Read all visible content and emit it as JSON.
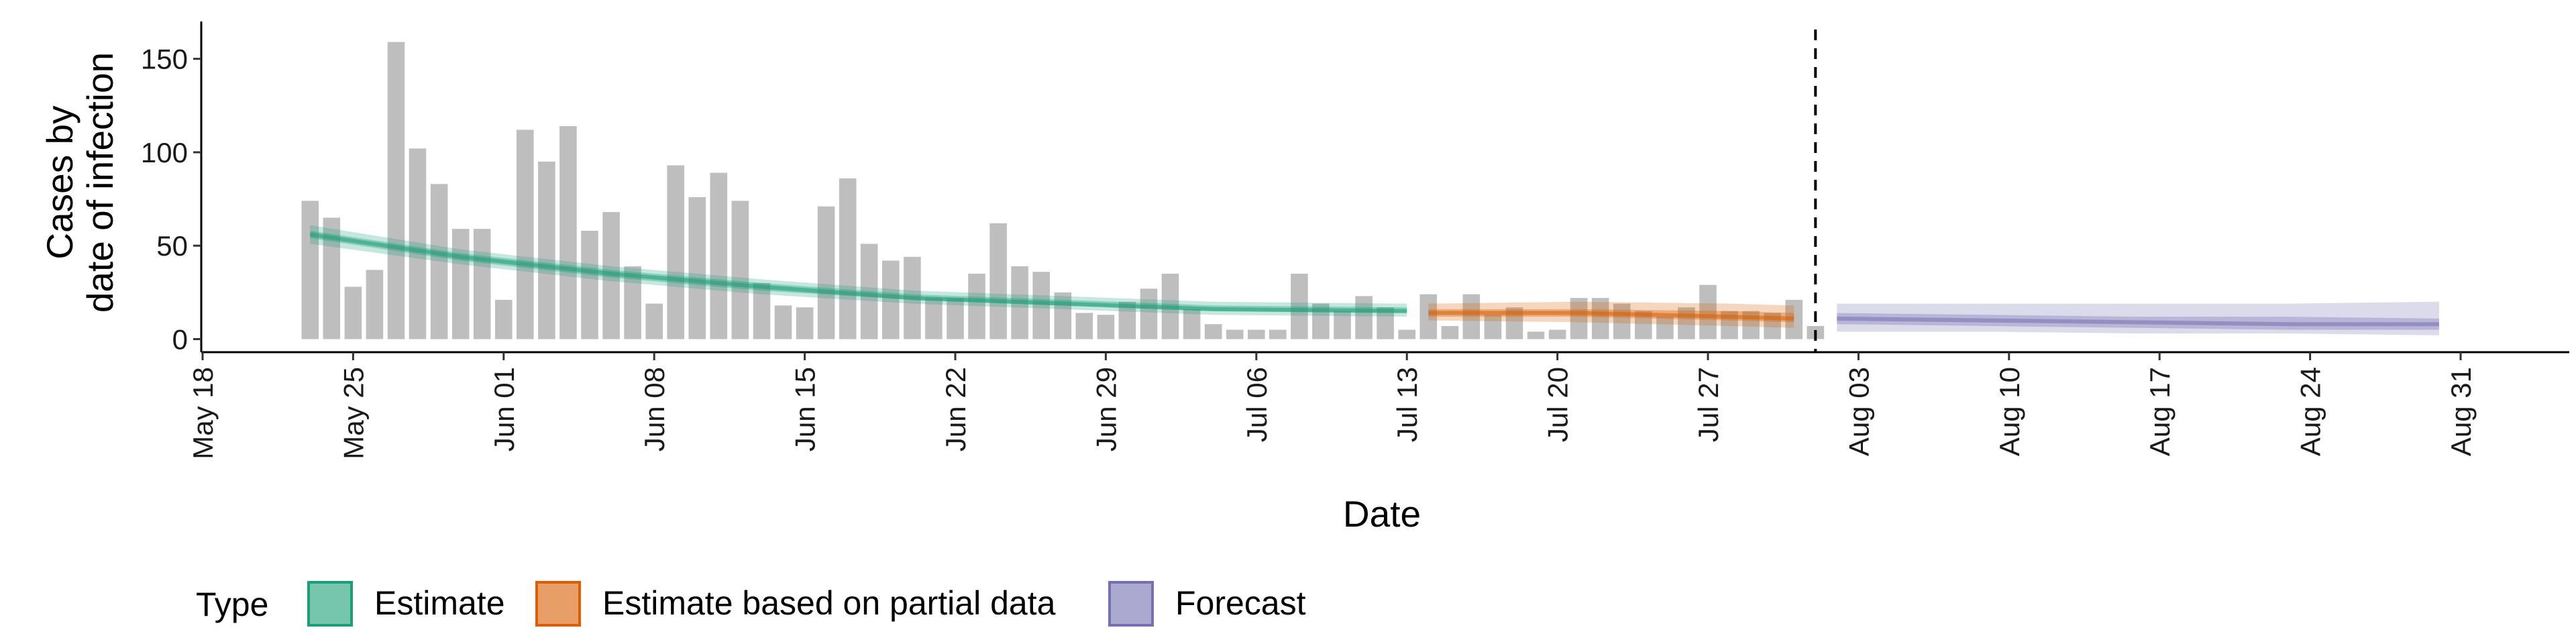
{
  "chart_data": {
    "type": "bar",
    "title": "",
    "xlabel": "Date",
    "ylabel_lines": [
      "Cases by",
      "date of infection"
    ],
    "x_range": [
      "2020-05-18",
      "2020-08-31"
    ],
    "ylim": [
      -7,
      170
    ],
    "y_ticks": [
      0,
      50,
      100,
      150
    ],
    "x_ticks": [
      {
        "date": "2020-05-18",
        "label": "May 18"
      },
      {
        "date": "2020-05-25",
        "label": "May 25"
      },
      {
        "date": "2020-06-01",
        "label": "Jun 01"
      },
      {
        "date": "2020-06-08",
        "label": "Jun 08"
      },
      {
        "date": "2020-06-15",
        "label": "Jun 15"
      },
      {
        "date": "2020-06-22",
        "label": "Jun 22"
      },
      {
        "date": "2020-06-29",
        "label": "Jun 29"
      },
      {
        "date": "2020-07-06",
        "label": "Jul 06"
      },
      {
        "date": "2020-07-13",
        "label": "Jul 13"
      },
      {
        "date": "2020-07-20",
        "label": "Jul 20"
      },
      {
        "date": "2020-07-27",
        "label": "Jul 27"
      },
      {
        "date": "2020-08-03",
        "label": "Aug 03"
      },
      {
        "date": "2020-08-10",
        "label": "Aug 10"
      },
      {
        "date": "2020-08-17",
        "label": "Aug 17"
      },
      {
        "date": "2020-08-24",
        "label": "Aug 24"
      },
      {
        "date": "2020-08-31",
        "label": "Aug 31"
      }
    ],
    "grid": false,
    "forecast_start": "2020-08-01",
    "bars": {
      "start_date": "2020-05-23",
      "color": "#bebebe",
      "values": [
        74,
        65,
        28,
        37,
        159,
        102,
        83,
        59,
        59,
        21,
        112,
        95,
        114,
        58,
        68,
        39,
        19,
        93,
        76,
        89,
        74,
        30,
        18,
        17,
        71,
        86,
        51,
        42,
        44,
        22,
        22,
        35,
        62,
        39,
        36,
        25,
        14,
        13,
        20,
        27,
        35,
        16,
        8,
        5,
        5,
        5,
        35,
        19,
        15,
        23,
        17,
        5,
        24,
        7,
        24,
        13,
        17,
        4,
        5,
        22,
        22,
        19,
        15,
        12,
        17,
        29,
        15,
        15,
        14,
        21,
        7
      ]
    },
    "ribbons": [
      {
        "type": "Estimate",
        "color": "#1b9e77",
        "dates": [
          "2020-05-23",
          "2020-05-30",
          "2020-06-06",
          "2020-06-13",
          "2020-06-20",
          "2020-06-27",
          "2020-07-04",
          "2020-07-13"
        ],
        "median": [
          56,
          44,
          35,
          28,
          22,
          19,
          16,
          15
        ],
        "lower_90": [
          51,
          40,
          31,
          24,
          19,
          16,
          13,
          12
        ],
        "upper_90": [
          61,
          48,
          39,
          32,
          26,
          23,
          20,
          19
        ],
        "lower_50": [
          54,
          42,
          33,
          26,
          21,
          18,
          15,
          14
        ],
        "upper_50": [
          58,
          46,
          37,
          30,
          24,
          21,
          18,
          17
        ]
      },
      {
        "type": "Estimate based on partial data",
        "color": "#d95f02",
        "dates": [
          "2020-07-14",
          "2020-07-21",
          "2020-07-28",
          "2020-07-31"
        ],
        "median": [
          14,
          14,
          12,
          11
        ],
        "lower_90": [
          10,
          9,
          7,
          6
        ],
        "upper_90": [
          19,
          20,
          19,
          18
        ],
        "lower_50": [
          12,
          12,
          10,
          9
        ],
        "upper_50": [
          16,
          16,
          15,
          14
        ]
      },
      {
        "type": "Forecast",
        "color": "#7570b3",
        "dates": [
          "2020-08-02",
          "2020-08-09",
          "2020-08-16",
          "2020-08-23",
          "2020-08-30"
        ],
        "median": [
          11,
          10,
          9,
          8,
          8
        ],
        "lower_90": [
          4,
          4,
          3,
          3,
          2
        ],
        "upper_90": [
          19,
          19,
          19,
          19,
          20
        ],
        "lower_50": [
          8,
          7,
          6,
          5,
          5
        ],
        "upper_50": [
          14,
          13,
          12,
          12,
          11
        ]
      }
    ],
    "legend": {
      "title": "Type",
      "placement": "bottom-left",
      "items": [
        {
          "label": "Estimate",
          "color": "#1b9e77"
        },
        {
          "label": "Estimate based on partial data",
          "color": "#d95f02"
        },
        {
          "label": "Forecast",
          "color": "#7570b3"
        }
      ]
    }
  }
}
